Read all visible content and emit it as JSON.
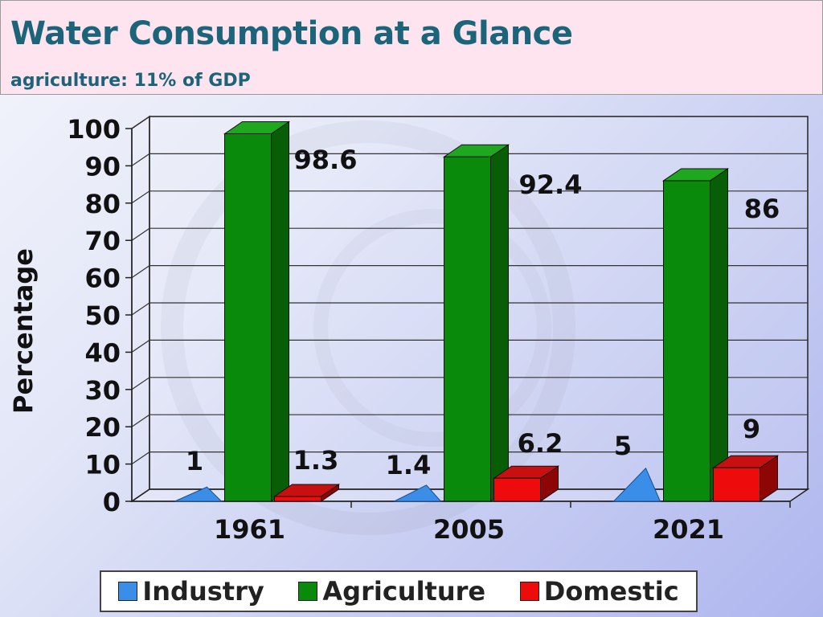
{
  "header": {
    "title": "Water Consumption at a Glance",
    "subtitle": "agriculture: 11% of GDP"
  },
  "chart_data": {
    "type": "bar",
    "title": "",
    "xlabel": "",
    "ylabel": "Percentage",
    "ylim": [
      0,
      100
    ],
    "yticks": [
      "0",
      "10",
      "20",
      "30",
      "40",
      "50",
      "60",
      "70",
      "80",
      "90",
      "100"
    ],
    "categories": [
      "1961",
      "2005",
      "2021"
    ],
    "series": [
      {
        "name": "Industry",
        "values": [
          1,
          1.4,
          5
        ],
        "labels": [
          "1",
          "1.4",
          "5"
        ],
        "color": "#3a8ee8",
        "top_color": "#6fb0f5",
        "side_color": "#1f5fb0"
      },
      {
        "name": "Agriculture",
        "values": [
          98.6,
          92.4,
          86
        ],
        "labels": [
          "98.6",
          "92.4",
          "86"
        ],
        "color": "#0a8a0a",
        "top_color": "#1fa81f",
        "side_color": "#075e07"
      },
      {
        "name": "Domestic",
        "values": [
          1.3,
          6.2,
          9
        ],
        "labels": [
          "1.3",
          "6.2",
          "9"
        ],
        "color": "#ee0b0b",
        "top_color": "#c91010",
        "side_color": "#8e0505"
      }
    ],
    "grid": true,
    "legend_position": "bottom",
    "style": "3d-column"
  }
}
